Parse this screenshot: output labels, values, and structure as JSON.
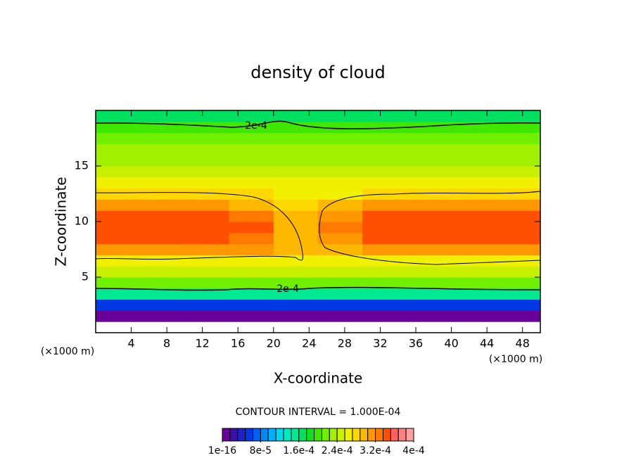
{
  "chart_data": {
    "type": "contour",
    "title": "density of cloud",
    "xlabel": "X-coordinate",
    "ylabel": "Z-coordinate",
    "x_unit": "(×1000 m)",
    "y_unit": "(×1000 m)",
    "xlim": [
      0,
      50
    ],
    "ylim": [
      0,
      20
    ],
    "xticks": [
      4,
      8,
      12,
      16,
      20,
      24,
      28,
      32,
      36,
      40,
      44,
      48
    ],
    "yticks": [
      5,
      10,
      15
    ],
    "x": [
      2.5,
      7.5,
      12.5,
      17.5,
      22.5,
      27.5,
      32.5,
      37.5,
      42.5,
      47.5
    ],
    "y": [
      0.5,
      1.5,
      2.5,
      3.5,
      4.5,
      5.5,
      6.5,
      7.5,
      8.5,
      9.5,
      10.5,
      11.5,
      12.5,
      13.5,
      14.5,
      15.5,
      16.5,
      17.5,
      18.5,
      19.5
    ],
    "z": [
      [
        0,
        0,
        0,
        0,
        0,
        0,
        0,
        0,
        0,
        0
      ],
      [
        1e-05,
        1e-05,
        1e-05,
        1e-05,
        1e-05,
        1e-05,
        1e-05,
        1e-05,
        1e-05,
        1e-05
      ],
      [
        6e-05,
        6e-05,
        6e-05,
        6e-05,
        6e-05,
        6e-05,
        6e-05,
        6e-05,
        6e-05,
        6e-05
      ],
      [
        0.00015,
        0.00015,
        0.00015,
        0.00015,
        0.00015,
        0.00015,
        0.00015,
        0.00015,
        0.00015,
        0.00015
      ],
      [
        0.00021,
        0.00021,
        0.00021,
        0.00021,
        0.00021,
        0.00021,
        0.00021,
        0.00021,
        0.00021,
        0.00021
      ],
      [
        0.00024,
        0.00024,
        0.00024,
        0.00024,
        0.00024,
        0.00024,
        0.00024,
        0.00024,
        0.00024,
        0.00024
      ],
      [
        0.00027,
        0.00027,
        0.00027,
        0.00027,
        0.00027,
        0.00027,
        0.00027,
        0.00027,
        0.00027,
        0.00027
      ],
      [
        0.00031,
        0.00031,
        0.00031,
        0.00031,
        0.00029,
        0.00029,
        0.00031,
        0.00031,
        0.00031,
        0.00031
      ],
      [
        0.00034,
        0.00034,
        0.00034,
        0.00033,
        0.0003,
        0.00031,
        0.00034,
        0.00034,
        0.00034,
        0.00034
      ],
      [
        0.00035,
        0.00035,
        0.00035,
        0.00034,
        0.0003,
        0.00032,
        0.00035,
        0.00035,
        0.00035,
        0.00035
      ],
      [
        0.00034,
        0.00034,
        0.00034,
        0.00033,
        0.00029,
        0.00031,
        0.00034,
        0.00034,
        0.00034,
        0.00034
      ],
      [
        0.00031,
        0.00031,
        0.00031,
        0.0003,
        0.00028,
        0.00029,
        0.00031,
        0.00031,
        0.00031,
        0.00031
      ],
      [
        0.00028,
        0.00028,
        0.00028,
        0.00028,
        0.00027,
        0.00027,
        0.00028,
        0.00028,
        0.00028,
        0.00028
      ],
      [
        0.00026,
        0.00026,
        0.00026,
        0.00026,
        0.00026,
        0.00026,
        0.00026,
        0.00026,
        0.00026,
        0.00026
      ],
      [
        0.000245,
        0.000245,
        0.000245,
        0.000245,
        0.000245,
        0.000245,
        0.000245,
        0.000245,
        0.000245,
        0.000245
      ],
      [
        0.000235,
        0.000235,
        0.000235,
        0.000235,
        0.000235,
        0.000235,
        0.000235,
        0.000235,
        0.000235,
        0.000235
      ],
      [
        0.000225,
        0.000225,
        0.000225,
        0.000225,
        0.000225,
        0.000225,
        0.000225,
        0.000225,
        0.000225,
        0.000225
      ],
      [
        0.000215,
        0.000215,
        0.000215,
        0.000215,
        0.000215,
        0.000215,
        0.000215,
        0.000215,
        0.000215,
        0.000215
      ],
      [
        0.0002,
        0.0002,
        0.0002,
        0.0002,
        0.0002,
        0.0002,
        0.0002,
        0.0002,
        0.0002,
        0.0002
      ],
      [
        0.00016,
        0.00016,
        0.00016,
        0.00016,
        0.00016,
        0.00016,
        0.00016,
        0.00016,
        0.00016,
        0.00016
      ]
    ],
    "contour_labels": [
      "2e-4",
      "2e-4"
    ],
    "contour_interval": "CONTOUR INTERVAL = 1.000E-04",
    "colorbar": {
      "step": 1.6e-05,
      "colors": [
        "#6a0099",
        "#3c0fa5",
        "#2020c8",
        "#0038e6",
        "#0060f0",
        "#0088f8",
        "#00b0ff",
        "#00d8f0",
        "#00e8c0",
        "#00e890",
        "#00e060",
        "#10e020",
        "#40e800",
        "#70f000",
        "#a0f000",
        "#c8f000",
        "#f0f000",
        "#ffd800",
        "#ffb800",
        "#ff9800",
        "#ff7800",
        "#ff5000",
        "#ff6060",
        "#ff8080",
        "#ffa0a0"
      ],
      "ticks": [
        {
          "value": 1e-16,
          "label": "1e-16"
        },
        {
          "value": 8e-05,
          "label": "8e-5"
        },
        {
          "value": 0.00016,
          "label": "1.6e-4"
        },
        {
          "value": 0.00024,
          "label": "2.4e-4"
        },
        {
          "value": 0.00032,
          "label": "3.2e-4"
        },
        {
          "value": 0.0004,
          "label": "4e-4"
        }
      ]
    }
  }
}
